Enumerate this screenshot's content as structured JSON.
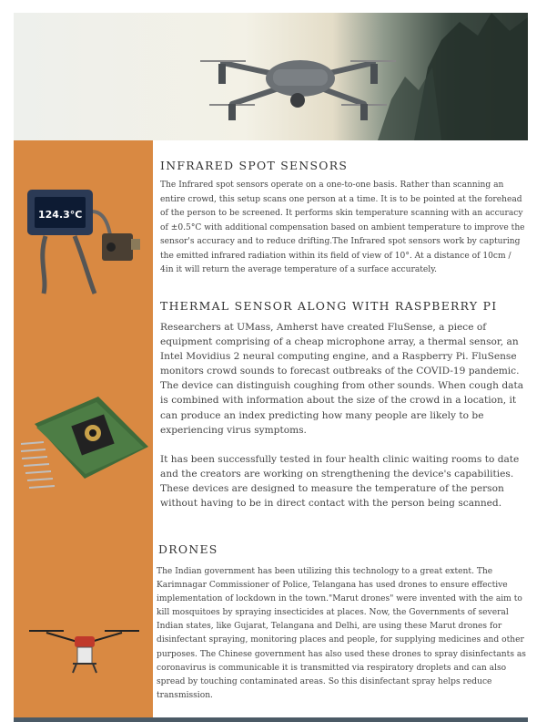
{
  "sections": [
    {
      "title": "INFRARED SPOT SENSORS",
      "body": "The Infrared spot sensors operate on a one-to-one basis. Rather than scanning an entire crowd, this setup scans one person at a time. It is to be pointed at the forehead of the person to be screened. It performs skin temperature scanning with an accuracy of ±0.5°C with additional compensation based on ambient temperature to improve the sensor's accuracy and to reduce drifting.The Infrared spot sensors work by capturing the emitted infrared radiation within its field of view of 10°. At a distance of 10cm / 4in it will return the average temperature of a surface accurately."
    },
    {
      "title": "THERMAL SENSOR ALONG WITH RASPBERRY PI",
      "body1": "Researchers at UMass, Amherst have created FluSense, a piece of equipment comprising of a cheap microphone array, a thermal sensor, an Intel Movidius 2 neural computing engine, and a Raspberry Pi. FluSense monitors crowd sounds to forecast outbreaks of  the COVID-19 pandemic. The device can distinguish coughing from other sounds. When cough data is combined with information about the size of the crowd in a location, it can produce an index predicting how many people are likely to be experiencing virus symptoms.",
      "body2": "It has been successfully tested in four health clinic waiting rooms to date and the creators are working on strengthening the device's capabilities. These devices are designed to measure the temperature of the person without having to be in direct contact with the person being scanned."
    },
    {
      "title": "DRONES",
      "body": "The Indian government has been utilizing this technology to a great extent. The Karimnagar Commissioner of Police, Telangana has used drones to ensure effective implementation of lockdown in the town.\"Marut drones\" were invented with the aim to kill mosquitoes by spraying insecticides at places. Now, the Governments of several Indian states, like Gujarat, Telangana and Delhi, are using these Marut drones for disinfectant spraying, monitoring places and people, for supplying medicines and other purposes. The Chinese government has also used these drones to spray  disinfectants as coronavirus is communicable it is transmitted via respiratory droplets and can also spread by touching contaminated areas. So this disinfectant spray helps reduce transmission."
    }
  ],
  "images": {
    "hero": "drone-photo",
    "ir_sensor": "infrared-spot-sensor-photo",
    "ir_display": "124.3°C",
    "thermal_sensor": "thermal-sensor-board-photo",
    "spray_drone": "spray-drone-photo"
  },
  "colors": {
    "sidebar": "#d98942",
    "bottom_bar": "#4b5a66"
  }
}
